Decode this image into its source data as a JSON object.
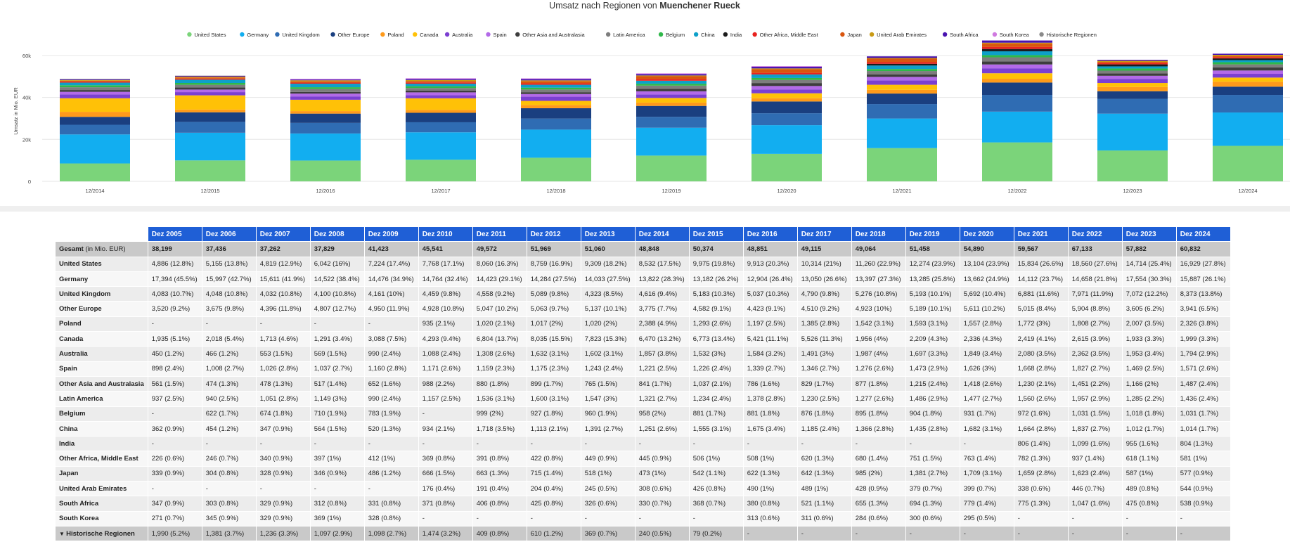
{
  "title_prefix": "Umsatz nach Regionen von ",
  "title_company": "Muenchener Rueck",
  "chart_data": {
    "type": "bar",
    "stacked": true,
    "ylabel": "Umsatz in Mio. EUR",
    "yticks": [
      {
        "v": 0,
        "label": "0"
      },
      {
        "v": 20000,
        "label": "20k"
      },
      {
        "v": 40000,
        "label": "40k"
      },
      {
        "v": 60000,
        "label": "60k"
      }
    ],
    "ylim": [
      0,
      68000
    ],
    "categories": [
      "12/2014",
      "12/2015",
      "12/2016",
      "12/2017",
      "12/2018",
      "12/2019",
      "12/2020",
      "12/2021",
      "12/2022",
      "12/2023",
      "12/2024"
    ],
    "legend_position": "top-center",
    "series": [
      {
        "name": "United States",
        "color": "#7bd47a",
        "values": [
          8532,
          9975,
          9913,
          10314,
          11260,
          12274,
          13104,
          15834,
          18560,
          14714,
          16929
        ]
      },
      {
        "name": "Germany",
        "color": "#12aef0",
        "values": [
          13822,
          13182,
          12904,
          13050,
          13397,
          13285,
          13662,
          14112,
          14658,
          17554,
          15887
        ]
      },
      {
        "name": "United Kingdom",
        "color": "#2f6cb3",
        "values": [
          4616,
          5183,
          5037,
          4790,
          5276,
          5193,
          5692,
          6881,
          7971,
          7072,
          8373
        ]
      },
      {
        "name": "Other Europe",
        "color": "#1a3f80",
        "values": [
          3775,
          4582,
          4423,
          4510,
          4923,
          5189,
          5611,
          5015,
          5904,
          3605,
          3941
        ]
      },
      {
        "name": "Poland",
        "color": "#ff9a1a",
        "values": [
          2388,
          1293,
          1197,
          1385,
          1542,
          1593,
          1557,
          1772,
          1808,
          2007,
          2326
        ]
      },
      {
        "name": "Canada",
        "color": "#ffc107",
        "values": [
          6470,
          6773,
          5421,
          5526,
          1956,
          2209,
          2336,
          2419,
          2615,
          1933,
          1999
        ]
      },
      {
        "name": "Australia",
        "color": "#7b3fd1",
        "values": [
          1857,
          1532,
          1584,
          1491,
          1987,
          1697,
          1849,
          2080,
          2362,
          1953,
          1794
        ]
      },
      {
        "name": "Spain",
        "color": "#b36ae8",
        "values": [
          1221,
          1226,
          1339,
          1346,
          1276,
          1473,
          1626,
          1668,
          1827,
          1469,
          1571
        ]
      },
      {
        "name": "Other Asia and Australasia",
        "color": "#3d3d3d",
        "values": [
          841,
          1037,
          786,
          829,
          877,
          1215,
          1418,
          1230,
          1451,
          1166,
          1487
        ]
      },
      {
        "name": "Latin America",
        "color": "#7d7d7d",
        "values": [
          1321,
          1234,
          1378,
          1230,
          1277,
          1486,
          1477,
          1560,
          1957,
          1285,
          1436
        ]
      },
      {
        "name": "Belgium",
        "color": "#2fb84a",
        "values": [
          958,
          881,
          881,
          876,
          895,
          904,
          931,
          972,
          1031,
          1018,
          1031
        ]
      },
      {
        "name": "China",
        "color": "#0ea0c9",
        "values": [
          1251,
          1555,
          1675,
          1185,
          1366,
          1435,
          1682,
          1664,
          1837,
          1012,
          1014
        ]
      },
      {
        "name": "India",
        "color": "#1b1b1b",
        "values": [
          0,
          0,
          0,
          0,
          0,
          0,
          0,
          806,
          1099,
          955,
          804
        ]
      },
      {
        "name": "Other Africa, Middle East",
        "color": "#e8231f",
        "values": [
          445,
          506,
          508,
          620,
          680,
          751,
          763,
          782,
          937,
          618,
          581
        ]
      },
      {
        "name": "Japan",
        "color": "#d9560f",
        "values": [
          473,
          542,
          622,
          642,
          985,
          1381,
          1709,
          1659,
          1623,
          587,
          577
        ]
      },
      {
        "name": "United Arab Emirates",
        "color": "#c99a14",
        "values": [
          308,
          426,
          490,
          489,
          428,
          379,
          399,
          338,
          446,
          489,
          544
        ]
      },
      {
        "name": "South Africa",
        "color": "#4a14b0",
        "values": [
          330,
          368,
          380,
          521,
          655,
          694,
          779,
          775,
          1047,
          475,
          538
        ]
      },
      {
        "name": "South Korea",
        "color": "#d07ae0",
        "values": [
          0,
          0,
          313,
          311,
          284,
          300,
          295,
          0,
          0,
          0,
          0
        ]
      },
      {
        "name": "Historische Regionen",
        "color": "#8a8a8a",
        "values": [
          240,
          79,
          0,
          0,
          0,
          0,
          0,
          0,
          0,
          0,
          0
        ]
      }
    ]
  },
  "table": {
    "corner_label": "Gesamt",
    "corner_unit": " (in Mio. EUR)",
    "years": [
      "Dez 2005",
      "Dez 2006",
      "Dez 2007",
      "Dez 2008",
      "Dez 2009",
      "Dez 2010",
      "Dez 2011",
      "Dez 2012",
      "Dez 2013",
      "Dez 2014",
      "Dez 2015",
      "Dez 2016",
      "Dez 2017",
      "Dez 2018",
      "Dez 2019",
      "Dez 2020",
      "Dez 2021",
      "Dez 2022",
      "Dez 2023",
      "Dez 2024"
    ],
    "totals": [
      "38,199",
      "37,436",
      "37,262",
      "37,829",
      "41,423",
      "45,541",
      "49,572",
      "51,969",
      "51,060",
      "48,848",
      "50,374",
      "48,851",
      "49,115",
      "49,064",
      "51,458",
      "54,890",
      "59,567",
      "67,133",
      "57,882",
      "60,832"
    ],
    "rows": [
      {
        "label": "United States",
        "values": [
          "4,886 (12.8%)",
          "5,155 (13.8%)",
          "4,819 (12.9%)",
          "6,042 (16%)",
          "7,224 (17.4%)",
          "7,768 (17.1%)",
          "8,060 (16.3%)",
          "8,759 (16.9%)",
          "9,309 (18.2%)",
          "8,532 (17.5%)",
          "9,975 (19.8%)",
          "9,913 (20.3%)",
          "10,314 (21%)",
          "11,260 (22.9%)",
          "12,274 (23.9%)",
          "13,104 (23.9%)",
          "15,834 (26.6%)",
          "18,560 (27.6%)",
          "14,714 (25.4%)",
          "16,929 (27.8%)"
        ]
      },
      {
        "label": "Germany",
        "values": [
          "17,394 (45.5%)",
          "15,997 (42.7%)",
          "15,611 (41.9%)",
          "14,522 (38.4%)",
          "14,476 (34.9%)",
          "14,764 (32.4%)",
          "14,423 (29.1%)",
          "14,284 (27.5%)",
          "14,033 (27.5%)",
          "13,822 (28.3%)",
          "13,182 (26.2%)",
          "12,904 (26.4%)",
          "13,050 (26.6%)",
          "13,397 (27.3%)",
          "13,285 (25.8%)",
          "13,662 (24.9%)",
          "14,112 (23.7%)",
          "14,658 (21.8%)",
          "17,554 (30.3%)",
          "15,887 (26.1%)"
        ]
      },
      {
        "label": "United Kingdom",
        "values": [
          "4,083 (10.7%)",
          "4,048 (10.8%)",
          "4,032 (10.8%)",
          "4,100 (10.8%)",
          "4,161 (10%)",
          "4,459 (9.8%)",
          "4,558 (9.2%)",
          "5,089 (9.8%)",
          "4,323 (8.5%)",
          "4,616 (9.4%)",
          "5,183 (10.3%)",
          "5,037 (10.3%)",
          "4,790 (9.8%)",
          "5,276 (10.8%)",
          "5,193 (10.1%)",
          "5,692 (10.4%)",
          "6,881 (11.6%)",
          "7,971 (11.9%)",
          "7,072 (12.2%)",
          "8,373 (13.8%)"
        ]
      },
      {
        "label": "Other Europe",
        "values": [
          "3,520 (9.2%)",
          "3,675 (9.8%)",
          "4,396 (11.8%)",
          "4,807 (12.7%)",
          "4,950 (11.9%)",
          "4,928 (10.8%)",
          "5,047 (10.2%)",
          "5,063 (9.7%)",
          "5,137 (10.1%)",
          "3,775 (7.7%)",
          "4,582 (9.1%)",
          "4,423 (9.1%)",
          "4,510 (9.2%)",
          "4,923 (10%)",
          "5,189 (10.1%)",
          "5,611 (10.2%)",
          "5,015 (8.4%)",
          "5,904 (8.8%)",
          "3,605 (6.2%)",
          "3,941 (6.5%)"
        ]
      },
      {
        "label": "Poland",
        "values": [
          "-",
          "-",
          "-",
          "-",
          "-",
          "935 (2.1%)",
          "1,020 (2.1%)",
          "1,017 (2%)",
          "1,020 (2%)",
          "2,388 (4.9%)",
          "1,293 (2.6%)",
          "1,197 (2.5%)",
          "1,385 (2.8%)",
          "1,542 (3.1%)",
          "1,593 (3.1%)",
          "1,557 (2.8%)",
          "1,772 (3%)",
          "1,808 (2.7%)",
          "2,007 (3.5%)",
          "2,326 (3.8%)"
        ]
      },
      {
        "label": "Canada",
        "values": [
          "1,935 (5.1%)",
          "2,018 (5.4%)",
          "1,713 (4.6%)",
          "1,291 (3.4%)",
          "3,088 (7.5%)",
          "4,293 (9.4%)",
          "6,804 (13.7%)",
          "8,035 (15.5%)",
          "7,823 (15.3%)",
          "6,470 (13.2%)",
          "6,773 (13.4%)",
          "5,421 (11.1%)",
          "5,526 (11.3%)",
          "1,956 (4%)",
          "2,209 (4.3%)",
          "2,336 (4.3%)",
          "2,419 (4.1%)",
          "2,615 (3.9%)",
          "1,933 (3.3%)",
          "1,999 (3.3%)"
        ]
      },
      {
        "label": "Australia",
        "values": [
          "450 (1.2%)",
          "466 (1.2%)",
          "553 (1.5%)",
          "569 (1.5%)",
          "990 (2.4%)",
          "1,088 (2.4%)",
          "1,308 (2.6%)",
          "1,632 (3.1%)",
          "1,602 (3.1%)",
          "1,857 (3.8%)",
          "1,532 (3%)",
          "1,584 (3.2%)",
          "1,491 (3%)",
          "1,987 (4%)",
          "1,697 (3.3%)",
          "1,849 (3.4%)",
          "2,080 (3.5%)",
          "2,362 (3.5%)",
          "1,953 (3.4%)",
          "1,794 (2.9%)"
        ]
      },
      {
        "label": "Spain",
        "values": [
          "898 (2.4%)",
          "1,008 (2.7%)",
          "1,026 (2.8%)",
          "1,037 (2.7%)",
          "1,160 (2.8%)",
          "1,171 (2.6%)",
          "1,159 (2.3%)",
          "1,175 (2.3%)",
          "1,243 (2.4%)",
          "1,221 (2.5%)",
          "1,226 (2.4%)",
          "1,339 (2.7%)",
          "1,346 (2.7%)",
          "1,276 (2.6%)",
          "1,473 (2.9%)",
          "1,626 (3%)",
          "1,668 (2.8%)",
          "1,827 (2.7%)",
          "1,469 (2.5%)",
          "1,571 (2.6%)"
        ]
      },
      {
        "label": "Other Asia and Australasia",
        "values": [
          "561 (1.5%)",
          "474 (1.3%)",
          "478 (1.3%)",
          "517 (1.4%)",
          "652 (1.6%)",
          "988 (2.2%)",
          "880 (1.8%)",
          "899 (1.7%)",
          "765 (1.5%)",
          "841 (1.7%)",
          "1,037 (2.1%)",
          "786 (1.6%)",
          "829 (1.7%)",
          "877 (1.8%)",
          "1,215 (2.4%)",
          "1,418 (2.6%)",
          "1,230 (2.1%)",
          "1,451 (2.2%)",
          "1,166 (2%)",
          "1,487 (2.4%)"
        ]
      },
      {
        "label": "Latin America",
        "values": [
          "937 (2.5%)",
          "940 (2.5%)",
          "1,051 (2.8%)",
          "1,149 (3%)",
          "990 (2.4%)",
          "1,157 (2.5%)",
          "1,536 (3.1%)",
          "1,600 (3.1%)",
          "1,547 (3%)",
          "1,321 (2.7%)",
          "1,234 (2.4%)",
          "1,378 (2.8%)",
          "1,230 (2.5%)",
          "1,277 (2.6%)",
          "1,486 (2.9%)",
          "1,477 (2.7%)",
          "1,560 (2.6%)",
          "1,957 (2.9%)",
          "1,285 (2.2%)",
          "1,436 (2.4%)"
        ]
      },
      {
        "label": "Belgium",
        "values": [
          "-",
          "622 (1.7%)",
          "674 (1.8%)",
          "710 (1.9%)",
          "783 (1.9%)",
          "-",
          "999 (2%)",
          "927 (1.8%)",
          "960 (1.9%)",
          "958 (2%)",
          "881 (1.7%)",
          "881 (1.8%)",
          "876 (1.8%)",
          "895 (1.8%)",
          "904 (1.8%)",
          "931 (1.7%)",
          "972 (1.6%)",
          "1,031 (1.5%)",
          "1,018 (1.8%)",
          "1,031 (1.7%)"
        ]
      },
      {
        "label": "China",
        "values": [
          "362 (0.9%)",
          "454 (1.2%)",
          "347 (0.9%)",
          "564 (1.5%)",
          "520 (1.3%)",
          "934 (2.1%)",
          "1,718 (3.5%)",
          "1,113 (2.1%)",
          "1,391 (2.7%)",
          "1,251 (2.6%)",
          "1,555 (3.1%)",
          "1,675 (3.4%)",
          "1,185 (2.4%)",
          "1,366 (2.8%)",
          "1,435 (2.8%)",
          "1,682 (3.1%)",
          "1,664 (2.8%)",
          "1,837 (2.7%)",
          "1,012 (1.7%)",
          "1,014 (1.7%)"
        ]
      },
      {
        "label": "India",
        "values": [
          "-",
          "-",
          "-",
          "-",
          "-",
          "-",
          "-",
          "-",
          "-",
          "-",
          "-",
          "-",
          "-",
          "-",
          "-",
          "-",
          "806 (1.4%)",
          "1,099 (1.6%)",
          "955 (1.6%)",
          "804 (1.3%)"
        ]
      },
      {
        "label": "Other Africa, Middle East",
        "values": [
          "226 (0.6%)",
          "246 (0.7%)",
          "340 (0.9%)",
          "397 (1%)",
          "412 (1%)",
          "369 (0.8%)",
          "391 (0.8%)",
          "422 (0.8%)",
          "449 (0.9%)",
          "445 (0.9%)",
          "506 (1%)",
          "508 (1%)",
          "620 (1.3%)",
          "680 (1.4%)",
          "751 (1.5%)",
          "763 (1.4%)",
          "782 (1.3%)",
          "937 (1.4%)",
          "618 (1.1%)",
          "581 (1%)"
        ]
      },
      {
        "label": "Japan",
        "values": [
          "339 (0.9%)",
          "304 (0.8%)",
          "328 (0.9%)",
          "346 (0.9%)",
          "486 (1.2%)",
          "666 (1.5%)",
          "663 (1.3%)",
          "715 (1.4%)",
          "518 (1%)",
          "473 (1%)",
          "542 (1.1%)",
          "622 (1.3%)",
          "642 (1.3%)",
          "985 (2%)",
          "1,381 (2.7%)",
          "1,709 (3.1%)",
          "1,659 (2.8%)",
          "1,623 (2.4%)",
          "587 (1%)",
          "577 (0.9%)"
        ]
      },
      {
        "label": "United Arab Emirates",
        "values": [
          "-",
          "-",
          "-",
          "-",
          "-",
          "176 (0.4%)",
          "191 (0.4%)",
          "204 (0.4%)",
          "245 (0.5%)",
          "308 (0.6%)",
          "426 (0.8%)",
          "490 (1%)",
          "489 (1%)",
          "428 (0.9%)",
          "379 (0.7%)",
          "399 (0.7%)",
          "338 (0.6%)",
          "446 (0.7%)",
          "489 (0.8%)",
          "544 (0.9%)"
        ]
      },
      {
        "label": "South Africa",
        "values": [
          "347 (0.9%)",
          "303 (0.8%)",
          "329 (0.9%)",
          "312 (0.8%)",
          "331 (0.8%)",
          "371 (0.8%)",
          "406 (0.8%)",
          "425 (0.8%)",
          "326 (0.6%)",
          "330 (0.7%)",
          "368 (0.7%)",
          "380 (0.8%)",
          "521 (1.1%)",
          "655 (1.3%)",
          "694 (1.3%)",
          "779 (1.4%)",
          "775 (1.3%)",
          "1,047 (1.6%)",
          "475 (0.8%)",
          "538 (0.9%)"
        ]
      },
      {
        "label": "South Korea",
        "values": [
          "271 (0.7%)",
          "345 (0.9%)",
          "329 (0.9%)",
          "369 (1%)",
          "328 (0.8%)",
          "-",
          "-",
          "-",
          "-",
          "-",
          "-",
          "313 (0.6%)",
          "311 (0.6%)",
          "284 (0.6%)",
          "300 (0.6%)",
          "295 (0.5%)",
          "-",
          "-",
          "-",
          "-"
        ]
      }
    ],
    "hist_row": {
      "label": "Historische Regionen",
      "values": [
        "1,990 (5.2%)",
        "1,381 (3.7%)",
        "1,236 (3.3%)",
        "1,097 (2.9%)",
        "1,098 (2.7%)",
        "1,474 (3.2%)",
        "409 (0.8%)",
        "610 (1.2%)",
        "369 (0.7%)",
        "240 (0.5%)",
        "79 (0.2%)",
        "-",
        "-",
        "-",
        "-",
        "-",
        "-",
        "-",
        "-",
        "-"
      ]
    }
  }
}
